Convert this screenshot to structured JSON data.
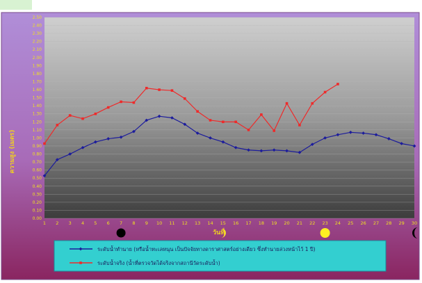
{
  "chart_data": {
    "type": "line",
    "ylabel": "ความสูง (เมตร)",
    "xlabel": "วันที่",
    "ylim": [
      0,
      2.5
    ],
    "ytick_step": 0.1,
    "x": [
      1,
      2,
      3,
      4,
      5,
      6,
      7,
      8,
      9,
      10,
      11,
      12,
      13,
      14,
      15,
      16,
      17,
      18,
      19,
      20,
      21,
      22,
      23,
      24,
      25,
      26,
      27,
      28,
      29,
      30
    ],
    "series": [
      {
        "name": "ระดับน้ำทำนาย (หรือน้ำทะเลหนุน เป็นปัจจัยทางดาราศาสตร์อย่างเดียว ซึ่งทำนายล่วงหน้าไว้ 1 ปี)",
        "color": "#1c1c9c",
        "values": [
          0.53,
          0.73,
          0.8,
          0.88,
          0.95,
          0.99,
          1.01,
          1.08,
          1.22,
          1.27,
          1.25,
          1.17,
          1.06,
          1.0,
          0.95,
          0.88,
          0.85,
          0.84,
          0.85,
          0.84,
          0.82,
          0.92,
          1.0,
          1.04,
          1.07,
          1.06,
          1.04,
          0.99,
          0.93,
          0.9
        ]
      },
      {
        "name": "ระดับน้ำจริง (น้ำที่ตรวจวัดได้จริงจากสถานีวัดระดับน้ำ)",
        "color": "#ee2a2a",
        "values": [
          0.93,
          1.16,
          1.28,
          1.24,
          1.3,
          1.38,
          1.45,
          1.44,
          1.62,
          1.6,
          1.59,
          1.49,
          1.33,
          1.22,
          1.2,
          1.2,
          1.1,
          1.29,
          1.09,
          1.43,
          1.16,
          1.43,
          1.57,
          1.67,
          null,
          null,
          null,
          null,
          null,
          null
        ]
      }
    ],
    "moon_phases": [
      {
        "day": 7,
        "phase": "new-moon-icon"
      },
      {
        "day": 15,
        "phase": "first-quarter-icon"
      },
      {
        "day": 23,
        "phase": "full-moon-icon"
      },
      {
        "day": 30,
        "phase": "last-quarter-icon"
      }
    ],
    "grid": true,
    "legend": "bottom"
  }
}
